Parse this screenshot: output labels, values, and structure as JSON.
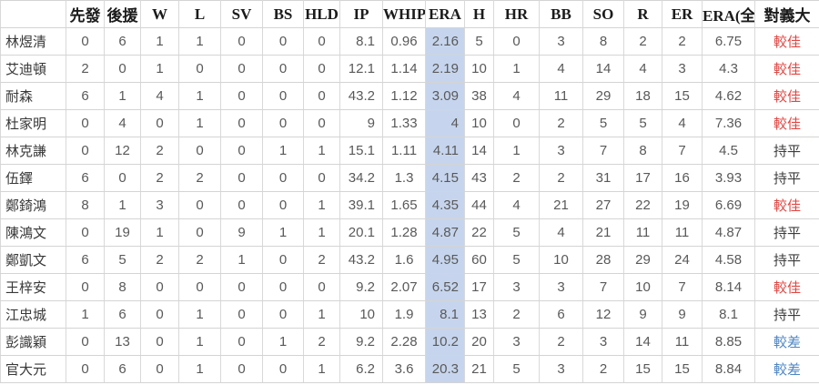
{
  "chart_data": {
    "type": "table",
    "columns": [
      {
        "key": "player",
        "label": ""
      },
      {
        "key": "starts",
        "label": "先發"
      },
      {
        "key": "relief",
        "label": "後援"
      },
      {
        "key": "w",
        "label": "W"
      },
      {
        "key": "l",
        "label": "L"
      },
      {
        "key": "sv",
        "label": "SV"
      },
      {
        "key": "bs",
        "label": "BS"
      },
      {
        "key": "hld",
        "label": "HLD"
      },
      {
        "key": "ip",
        "label": "IP"
      },
      {
        "key": "whip",
        "label": "WHIP"
      },
      {
        "key": "era",
        "label": "ERA"
      },
      {
        "key": "h",
        "label": "H"
      },
      {
        "key": "hr",
        "label": "HR"
      },
      {
        "key": "bb",
        "label": "BB"
      },
      {
        "key": "so",
        "label": "SO"
      },
      {
        "key": "r",
        "label": "R"
      },
      {
        "key": "er",
        "label": "ER"
      },
      {
        "key": "era_total",
        "label": "ERA(全)"
      },
      {
        "key": "vs_eda",
        "label": "對義大"
      }
    ],
    "rows": [
      {
        "player": "林煜清",
        "stats": [
          "0",
          "6",
          "1",
          "1",
          "0",
          "0",
          "0",
          "8.1",
          "0.96",
          "2.16",
          "5",
          "0",
          "3",
          "8",
          "2",
          "2",
          "6.75"
        ],
        "vs": "較佳"
      },
      {
        "player": "艾迪頓",
        "stats": [
          "2",
          "0",
          "1",
          "0",
          "0",
          "0",
          "0",
          "12.1",
          "1.14",
          "2.19",
          "10",
          "1",
          "4",
          "14",
          "4",
          "3",
          "4.3"
        ],
        "vs": "較佳"
      },
      {
        "player": "耐森",
        "stats": [
          "6",
          "1",
          "4",
          "1",
          "0",
          "0",
          "0",
          "43.2",
          "1.12",
          "3.09",
          "38",
          "4",
          "11",
          "29",
          "18",
          "15",
          "4.62"
        ],
        "vs": "較佳"
      },
      {
        "player": "杜家明",
        "stats": [
          "0",
          "4",
          "0",
          "1",
          "0",
          "0",
          "0",
          "9",
          "1.33",
          "4",
          "10",
          "0",
          "2",
          "5",
          "5",
          "4",
          "7.36"
        ],
        "vs": "較佳"
      },
      {
        "player": "林克謙",
        "stats": [
          "0",
          "12",
          "2",
          "0",
          "0",
          "1",
          "1",
          "15.1",
          "1.11",
          "4.11",
          "14",
          "1",
          "3",
          "7",
          "8",
          "7",
          "4.5"
        ],
        "vs": "持平"
      },
      {
        "player": "伍鐸",
        "stats": [
          "6",
          "0",
          "2",
          "2",
          "0",
          "0",
          "0",
          "34.2",
          "1.3",
          "4.15",
          "43",
          "2",
          "2",
          "31",
          "17",
          "16",
          "3.93"
        ],
        "vs": "持平"
      },
      {
        "player": "鄭錡鴻",
        "stats": [
          "8",
          "1",
          "3",
          "0",
          "0",
          "0",
          "1",
          "39.1",
          "1.65",
          "4.35",
          "44",
          "4",
          "21",
          "27",
          "22",
          "19",
          "6.69"
        ],
        "vs": "較佳"
      },
      {
        "player": "陳鴻文",
        "stats": [
          "0",
          "19",
          "1",
          "0",
          "9",
          "1",
          "1",
          "20.1",
          "1.28",
          "4.87",
          "22",
          "5",
          "4",
          "21",
          "11",
          "11",
          "4.87"
        ],
        "vs": "持平"
      },
      {
        "player": "鄭凱文",
        "stats": [
          "6",
          "5",
          "2",
          "2",
          "1",
          "0",
          "2",
          "43.2",
          "1.6",
          "4.95",
          "60",
          "5",
          "10",
          "28",
          "29",
          "24",
          "4.58"
        ],
        "vs": "持平"
      },
      {
        "player": "王梓安",
        "stats": [
          "0",
          "8",
          "0",
          "0",
          "0",
          "0",
          "0",
          "9.2",
          "2.07",
          "6.52",
          "17",
          "3",
          "3",
          "7",
          "10",
          "7",
          "8.14"
        ],
        "vs": "較佳"
      },
      {
        "player": "江忠城",
        "stats": [
          "1",
          "6",
          "0",
          "1",
          "0",
          "0",
          "1",
          "10",
          "1.9",
          "8.1",
          "13",
          "2",
          "6",
          "12",
          "9",
          "9",
          "8.1"
        ],
        "vs": "持平"
      },
      {
        "player": "彭識穎",
        "stats": [
          "0",
          "13",
          "0",
          "1",
          "0",
          "1",
          "2",
          "9.2",
          "2.28",
          "10.2",
          "20",
          "3",
          "2",
          "3",
          "14",
          "11",
          "8.85"
        ],
        "vs": "較差"
      },
      {
        "player": "官大元",
        "stats": [
          "0",
          "6",
          "0",
          "1",
          "0",
          "0",
          "1",
          "6.2",
          "3.6",
          "20.3",
          "21",
          "5",
          "3",
          "2",
          "15",
          "15",
          "8.84"
        ],
        "vs": "較差"
      }
    ]
  },
  "colors": {
    "era_column_highlight": "#c6d5ed",
    "vs_result": {
      "較佳": "#df4743",
      "持平": "#3c3c3c",
      "較差": "#4e86c4"
    }
  }
}
